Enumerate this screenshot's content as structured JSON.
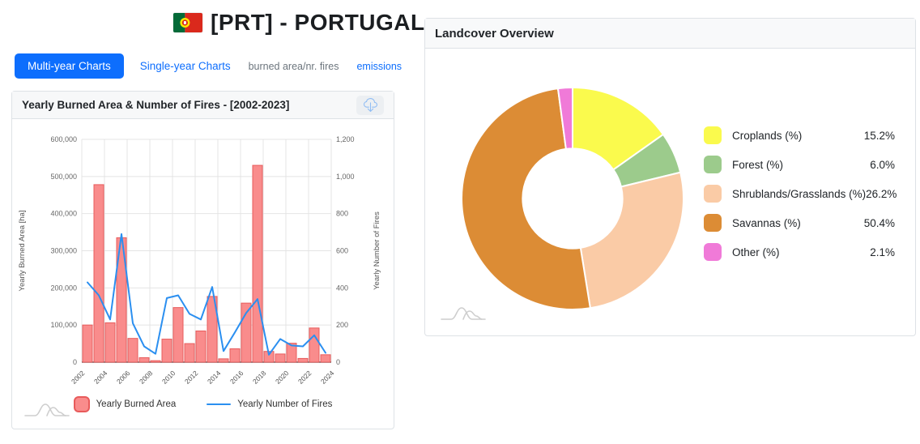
{
  "header": {
    "title": "[PRT] - PORTUGAL",
    "flag_icon": "portugal-flag"
  },
  "tabs": {
    "multi_year": {
      "label": "Multi-year Charts",
      "active": true
    },
    "single_year": {
      "label": "Single-year Charts",
      "active": false
    },
    "burned_area": {
      "label": "burned area/nr. fires",
      "active": false
    },
    "emissions": {
      "label": "emissions",
      "active": false
    }
  },
  "fires_card": {
    "download_icon": "cloud-download-icon"
  },
  "watermark_icon": "hills-logo-watermark",
  "colors": {
    "accent": "#0d6efd"
  },
  "chart_data": [
    {
      "type": "bar+line",
      "title": "Yearly Burned Area & Number of Fires - [2002-2023]",
      "categories": [
        2002,
        2003,
        2004,
        2005,
        2006,
        2007,
        2008,
        2009,
        2010,
        2011,
        2012,
        2013,
        2014,
        2015,
        2016,
        2017,
        2018,
        2019,
        2020,
        2021,
        2022,
        2023
      ],
      "series": [
        {
          "name": "Yearly Burned Area",
          "type": "bar",
          "axis": "left",
          "color": "#f98c8c",
          "border_color": "#e85b5b",
          "values": [
            100000,
            478000,
            106000,
            335000,
            64000,
            12000,
            4000,
            62000,
            147000,
            50000,
            84000,
            177000,
            9000,
            36000,
            159000,
            530000,
            29000,
            22000,
            51000,
            10000,
            92000,
            20000
          ]
        },
        {
          "name": "Yearly Number of Fires",
          "type": "line",
          "axis": "right",
          "color": "#2b8ff0",
          "values": [
            430,
            360,
            230,
            690,
            210,
            85,
            45,
            345,
            360,
            260,
            230,
            405,
            60,
            160,
            265,
            340,
            40,
            125,
            90,
            85,
            145,
            50
          ]
        }
      ],
      "left_axis": {
        "label": "Yearly Burned Area [ha]",
        "min": 0,
        "max": 600000,
        "step": 100000
      },
      "right_axis": {
        "label": "Yearly Number of Fires",
        "min": 0,
        "max": 1200,
        "step": 200
      },
      "x_tick_step": 2,
      "x_tick_labels": [
        2002,
        2004,
        2006,
        2008,
        2010,
        2012,
        2014,
        2016,
        2018,
        2020,
        2022,
        2024
      ],
      "grid": true,
      "grid_color": "#e4e4e4",
      "legend_position": "bottom"
    },
    {
      "type": "donut",
      "title": "Landcover Overview",
      "hole_ratio": 0.45,
      "slices": [
        {
          "label": "Croplands (%)",
          "value": 15.2,
          "display": "15.2%",
          "color": "#fafa4d"
        },
        {
          "label": "Forest (%)",
          "value": 6.0,
          "display": "6.0%",
          "color": "#9ccb8c"
        },
        {
          "label": "Shrublands/Grasslands (%)",
          "value": 26.2,
          "display": "26.2%",
          "color": "#facba6"
        },
        {
          "label": "Savannas (%)",
          "value": 50.4,
          "display": "50.4%",
          "color": "#dc8c35"
        },
        {
          "label": "Other (%)",
          "value": 2.1,
          "display": "2.1%",
          "color": "#f07ad8"
        }
      ],
      "legend_position": "right"
    }
  ]
}
